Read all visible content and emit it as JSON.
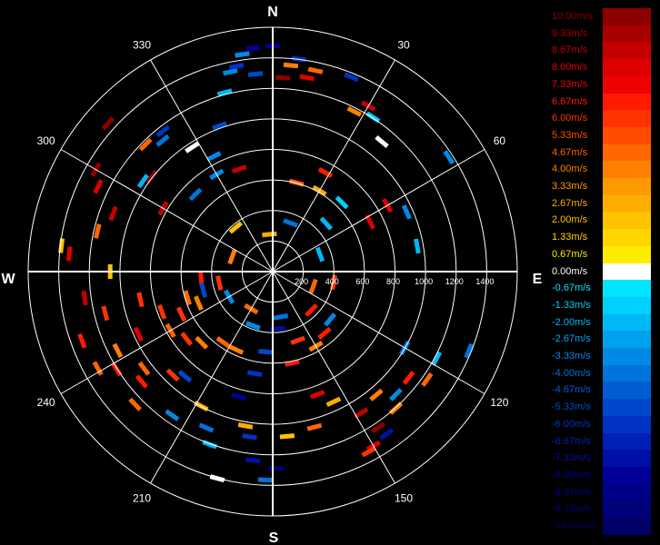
{
  "chart_data": {
    "type": "polar",
    "cardinals": [
      "N",
      "E",
      "S",
      "W"
    ],
    "angle_labels": [
      "30",
      "60",
      "120",
      "150",
      "210",
      "240",
      "300",
      "330"
    ],
    "angle_ticks": [
      30,
      60,
      120,
      150,
      210,
      240,
      300,
      330
    ],
    "range_labels": [
      "200",
      "400",
      "600",
      "800",
      "1000",
      "1200",
      "1400"
    ],
    "range_ticks": [
      200,
      400,
      600,
      800,
      1000,
      1200,
      1400
    ],
    "range_max": 1700,
    "grid": true,
    "colorbar": {
      "unit": "m/s",
      "labels": [
        "10.00m/s",
        "9.33m/s",
        "8.67m/s",
        "8.00m/s",
        "7.33m/s",
        "6.67m/s",
        "6.00m/s",
        "5.33m/s",
        "4.67m/s",
        "4.00m/s",
        "3.33m/s",
        "2.67m/s",
        "2.00m/s",
        "1.33m/s",
        "0.67m/s",
        "0.00m/s",
        "-0.67m/s",
        "-1.33m/s",
        "-2.00m/s",
        "-2.67m/s",
        "-3.33m/s",
        "-4.00m/s",
        "-4.67m/s",
        "-5.33m/s",
        "-6.00m/s",
        "-6.67m/s",
        "-7.33m/s",
        "-8.00m/s",
        "-8.67m/s",
        "-9.33m/s",
        "-10.00m/s"
      ],
      "colors": [
        "#8c0000",
        "#a80000",
        "#c40000",
        "#de0000",
        "#f00000",
        "#ff1a00",
        "#ff3300",
        "#ff4d00",
        "#ff6600",
        "#ff8000",
        "#ff9900",
        "#ffad00",
        "#ffc200",
        "#ffd600",
        "#ffeb00",
        "#ffffff",
        "#00e5ff",
        "#00d0ff",
        "#00b8f5",
        "#00a2ef",
        "#008ae6",
        "#0073dd",
        "#005dd4",
        "#0048cb",
        "#0033c2",
        "#0020b5",
        "#0010a6",
        "#000096",
        "#000087",
        "#000078",
        "#000066"
      ],
      "label_colors": [
        "#8c0000",
        "#a80000",
        "#c40000",
        "#de0000",
        "#f00000",
        "#ff1a00",
        "#ff3300",
        "#ff4d00",
        "#ff6600",
        "#ff8000",
        "#ff9900",
        "#ffad00",
        "#ffc200",
        "#ffd600",
        "#ffeb00",
        "#ffffff",
        "#00e5ff",
        "#00d0ff",
        "#00b8f5",
        "#00a2ef",
        "#008ae6",
        "#0073dd",
        "#005dd4",
        "#0048cb",
        "#0033c2",
        "#0020b5",
        "#0010a6",
        "#000096",
        "#000087",
        "#000078",
        "#000066"
      ]
    },
    "bins": [
      {
        "az": 0,
        "r": 1570,
        "v": -8
      },
      {
        "az": -8,
        "r": 1525,
        "v": -3
      },
      {
        "az": 7,
        "r": 1490,
        "v": -6
      },
      {
        "az": 5,
        "r": 1440,
        "v": 4
      },
      {
        "az": -5,
        "r": 1380,
        "v": -5
      },
      {
        "az": 3,
        "r": 1350,
        "v": 10
      },
      {
        "az": 10,
        "r": 1370,
        "v": 8
      },
      {
        "az": 12,
        "r": 1430,
        "v": 5
      },
      {
        "az": -12,
        "r": 1420,
        "v": -3
      },
      {
        "az": 22,
        "r": 1460,
        "v": -6
      },
      {
        "az": 30,
        "r": 1330,
        "v": 9
      },
      {
        "az": 33,
        "r": 1280,
        "v": -1
      },
      {
        "az": 27,
        "r": 1250,
        "v": 4
      },
      {
        "az": 40,
        "r": 1180,
        "v": 0
      },
      {
        "az": 57,
        "r": 1460,
        "v": -3
      },
      {
        "az": 60,
        "r": 920,
        "v": 8
      },
      {
        "az": 63,
        "r": 760,
        "v": 8
      },
      {
        "az": 66,
        "r": 1020,
        "v": -3
      },
      {
        "az": 80,
        "r": 1020,
        "v": -2
      },
      {
        "az": 28,
        "r": 780,
        "v": 7
      },
      {
        "az": 45,
        "r": 680,
        "v": -1
      },
      {
        "az": 120,
        "r": 1060,
        "v": -4
      },
      {
        "az": 118,
        "r": 1290,
        "v": -2
      },
      {
        "az": 112,
        "r": 1470,
        "v": -4
      },
      {
        "az": 125,
        "r": 1310,
        "v": 5
      },
      {
        "az": 128,
        "r": 1200,
        "v": 7
      },
      {
        "az": 135,
        "r": 1210,
        "v": -3
      },
      {
        "az": 138,
        "r": 1280,
        "v": 4
      },
      {
        "az": 140,
        "r": 1120,
        "v": 4
      },
      {
        "az": 145,
        "r": 1380,
        "v": -7
      },
      {
        "az": 146,
        "r": 1310,
        "v": 10
      },
      {
        "az": 150,
        "r": 1400,
        "v": 8
      },
      {
        "az": 152,
        "r": 1420,
        "v": 6
      },
      {
        "az": 148,
        "r": 1160,
        "v": 9
      },
      {
        "az": 155,
        "r": 1000,
        "v": 3
      },
      {
        "az": 160,
        "r": 910,
        "v": 8
      },
      {
        "az": 165,
        "r": 1120,
        "v": 5
      },
      {
        "az": 168,
        "r": 650,
        "v": 7
      },
      {
        "az": 175,
        "r": 1150,
        "v": 2
      },
      {
        "az": 179,
        "r": 1370,
        "v": -9
      },
      {
        "az": 182,
        "r": 1450,
        "v": -4
      },
      {
        "az": 186,
        "r": 1320,
        "v": -7
      },
      {
        "az": 188,
        "r": 1160,
        "v": -6
      },
      {
        "az": 190,
        "r": 1090,
        "v": 3
      },
      {
        "az": 195,
        "r": 1490,
        "v": 0
      },
      {
        "az": 200,
        "r": 1280,
        "v": -2
      },
      {
        "az": 203,
        "r": 1180,
        "v": -4
      },
      {
        "az": 208,
        "r": 1060,
        "v": 3
      },
      {
        "az": 215,
        "r": 1220,
        "v": -3
      },
      {
        "az": 220,
        "r": 950,
        "v": -5
      },
      {
        "az": 224,
        "r": 1000,
        "v": 6
      },
      {
        "az": 226,
        "r": 1330,
        "v": 5
      },
      {
        "az": 230,
        "r": 1190,
        "v": 7
      },
      {
        "az": 233,
        "r": 1120,
        "v": 5
      },
      {
        "az": 238,
        "r": 1280,
        "v": 7
      },
      {
        "az": 241,
        "r": 1390,
        "v": 5
      },
      {
        "az": 243,
        "r": 1210,
        "v": 4
      },
      {
        "az": 245,
        "r": 1030,
        "v": 8
      },
      {
        "az": 250,
        "r": 1410,
        "v": 7
      },
      {
        "az": 250,
        "r": 820,
        "v": 6
      },
      {
        "az": 253,
        "r": 620,
        "v": 5
      },
      {
        "az": 256,
        "r": 1200,
        "v": 6
      },
      {
        "az": 258,
        "r": 940,
        "v": 6
      },
      {
        "az": 262,
        "r": 1320,
        "v": 9
      },
      {
        "az": 265,
        "r": 500,
        "v": 7
      },
      {
        "az": 270,
        "r": 1130,
        "v": 2
      },
      {
        "az": 275,
        "r": 1420,
        "v": 8
      },
      {
        "az": 277,
        "r": 1480,
        "v": 2
      },
      {
        "az": 283,
        "r": 1250,
        "v": 5
      },
      {
        "az": 290,
        "r": 1180,
        "v": 9
      },
      {
        "az": 296,
        "r": 1350,
        "v": 8
      },
      {
        "az": 300,
        "r": 1420,
        "v": 10
      },
      {
        "az": 305,
        "r": 1100,
        "v": -2
      },
      {
        "az": 308,
        "r": 1070,
        "v": 10
      },
      {
        "az": 315,
        "r": 1250,
        "v": 5
      },
      {
        "az": 320,
        "r": 1190,
        "v": -4
      },
      {
        "az": 322,
        "r": 1240,
        "v": -6
      },
      {
        "az": 327,
        "r": 1030,
        "v": 0
      },
      {
        "az": 333,
        "r": 900,
        "v": -3
      },
      {
        "az": 340,
        "r": 1080,
        "v": -5
      },
      {
        "az": 345,
        "r": 1290,
        "v": -2
      },
      {
        "az": 350,
        "r": 1450,
        "v": -6
      },
      {
        "az": 355,
        "r": 1560,
        "v": -8
      },
      {
        "az": 312,
        "r": 1540,
        "v": 10
      },
      {
        "az": 315,
        "r": 760,
        "v": -4
      },
      {
        "az": 330,
        "r": 780,
        "v": -3
      },
      {
        "az": 300,
        "r": 880,
        "v": 9
      },
      {
        "az": 342,
        "r": 750,
        "v": 9
      },
      {
        "az": 30,
        "r": 650,
        "v": 3
      },
      {
        "az": 15,
        "r": 640,
        "v": 5
      },
      {
        "az": 48,
        "r": 500,
        "v": -2
      },
      {
        "az": 160,
        "r": 510,
        "v": 6
      },
      {
        "az": 150,
        "r": 600,
        "v": 4
      },
      {
        "az": 140,
        "r": 560,
        "v": 7
      },
      {
        "az": 130,
        "r": 520,
        "v": -3
      },
      {
        "az": 185,
        "r": 560,
        "v": -5
      },
      {
        "az": 190,
        "r": 720,
        "v": -6
      },
      {
        "az": 195,
        "r": 900,
        "v": -8
      },
      {
        "az": 205,
        "r": 600,
        "v": 4
      },
      {
        "az": 215,
        "r": 600,
        "v": 5
      },
      {
        "az": 225,
        "r": 700,
        "v": 4
      },
      {
        "az": 232,
        "r": 760,
        "v": 6
      },
      {
        "az": 240,
        "r": 820,
        "v": 5
      },
      {
        "az": 245,
        "r": 700,
        "v": 6
      },
      {
        "az": 247,
        "r": 560,
        "v": 4
      },
      {
        "az": 255,
        "r": 500,
        "v": -5
      },
      {
        "az": 258,
        "r": 380,
        "v": 6
      },
      {
        "az": 200,
        "r": 400,
        "v": -3
      },
      {
        "az": 175,
        "r": 400,
        "v": -7
      },
      {
        "az": 170,
        "r": 320,
        "v": -4
      },
      {
        "az": 240,
        "r": 350,
        "v": -3
      },
      {
        "az": 355,
        "r": 260,
        "v": 3
      },
      {
        "az": 320,
        "r": 400,
        "v": 2
      },
      {
        "az": 70,
        "r": 350,
        "v": -2
      },
      {
        "az": 110,
        "r": 300,
        "v": 5
      },
      {
        "az": 290,
        "r": 300,
        "v": 4
      },
      {
        "az": 20,
        "r": 360,
        "v": -4
      },
      {
        "az": 100,
        "r": 430,
        "v": 6
      },
      {
        "az": 135,
        "r": 380,
        "v": 7
      },
      {
        "az": 210,
        "r": 300,
        "v": 5
      }
    ]
  }
}
